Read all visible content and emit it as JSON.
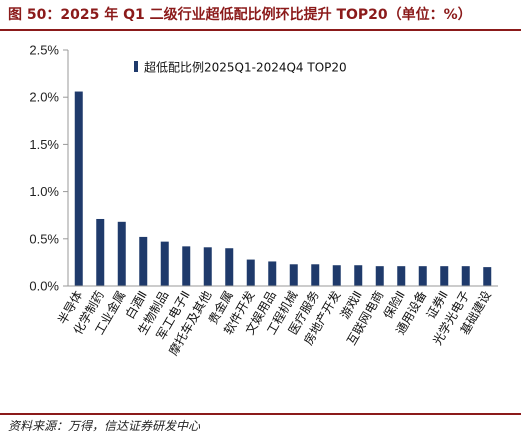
{
  "header": {
    "title": "图 50：2025 年 Q1 二级行业超低配比例环比提升 TOP20（单位：%）"
  },
  "footer": {
    "source": "资料来源：万得，信达证券研发中心"
  },
  "colors": {
    "accent": "#8b1a1a",
    "bar": "#1f3a6b",
    "axis": "#999999"
  },
  "chart_data": {
    "type": "bar",
    "title": "",
    "xlabel": "",
    "ylabel": "",
    "ylim": [
      0,
      2.5
    ],
    "yticks": [
      "0.0%",
      "0.5%",
      "1.0%",
      "1.5%",
      "2.0%",
      "2.5%"
    ],
    "ytick_values": [
      0,
      0.5,
      1.0,
      1.5,
      2.0,
      2.5
    ],
    "grid": false,
    "legend_position": "top-right",
    "categories": [
      "半导体",
      "化学制药",
      "工业金属",
      "白酒Ⅱ",
      "生物制品",
      "军工电子Ⅱ",
      "摩托车及其他",
      "贵金属",
      "软件开发",
      "文娱用品",
      "工程机械",
      "医疗服务",
      "房地产开发",
      "游戏Ⅱ",
      "互联网电商",
      "保险Ⅱ",
      "通用设备",
      "证券Ⅱ",
      "光学光电子",
      "基础建设"
    ],
    "series": [
      {
        "name": "超低配比例2025Q1-2024Q4 TOP20",
        "values": [
          2.06,
          0.71,
          0.68,
          0.52,
          0.47,
          0.42,
          0.41,
          0.4,
          0.28,
          0.26,
          0.23,
          0.23,
          0.22,
          0.22,
          0.21,
          0.21,
          0.21,
          0.21,
          0.21,
          0.2
        ]
      }
    ]
  }
}
